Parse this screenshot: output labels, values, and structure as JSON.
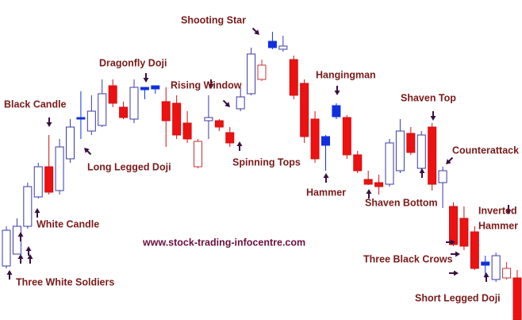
{
  "chart_data": {
    "type": "candlestick",
    "ylim": [
      0,
      403
    ],
    "styles": {
      "up": {
        "fill": "#ffffff",
        "stroke": "#3a3aa8"
      },
      "down": {
        "fill": "#ee1111",
        "stroke": "#cc1111"
      },
      "blue": {
        "fill": "#1030e0",
        "stroke": "#1030e0"
      },
      "hollow-red": {
        "fill": "#ffffff",
        "stroke": "#cc3333"
      }
    },
    "style": [
      "up",
      "up",
      "up",
      "up",
      "down",
      "up",
      "up",
      "blue",
      "up",
      "up",
      "down",
      "down",
      "up",
      "blue",
      "blue",
      "down",
      "down",
      "down",
      "hollow-red",
      "up",
      "down",
      "down",
      "up",
      "up",
      "hollow-red",
      "blue",
      "up",
      "down",
      "down",
      "down",
      "blue",
      "blue",
      "down",
      "down",
      "down",
      "down",
      "up",
      "up",
      "down",
      "up",
      "down",
      "up",
      "down",
      "down",
      "down",
      "blue",
      "up",
      "hollow-red",
      "down"
    ],
    "open": [
      68,
      83,
      118,
      155,
      193,
      163,
      203,
      255,
      238,
      245,
      295,
      268,
      253,
      293,
      291,
      275,
      273,
      248,
      193,
      251,
      251,
      236,
      266,
      285,
      303,
      351,
      341,
      328,
      298,
      253,
      231,
      270,
      255,
      208,
      177,
      173,
      171,
      188,
      235,
      191,
      243,
      173,
      143,
      128,
      111,
      73,
      51,
      53,
      53
    ],
    "close": [
      113,
      118,
      168,
      193,
      161,
      218,
      243,
      255,
      263,
      285,
      273,
      255,
      293,
      290,
      295,
      251,
      233,
      228,
      225,
      255,
      243,
      223,
      281,
      335,
      321,
      343,
      345,
      283,
      231,
      203,
      220,
      256,
      208,
      188,
      171,
      168,
      223,
      238,
      211,
      233,
      171,
      188,
      95,
      93,
      65,
      69,
      81,
      65,
      0
    ],
    "high": [
      118,
      128,
      173,
      198,
      233,
      228,
      253,
      288,
      283,
      303,
      303,
      275,
      303,
      293,
      295,
      293,
      283,
      263,
      228,
      283,
      253,
      243,
      293,
      343,
      328,
      363,
      358,
      333,
      303,
      263,
      233,
      273,
      258,
      213,
      188,
      183,
      228,
      253,
      243,
      238,
      248,
      193,
      148,
      143,
      118,
      81,
      85,
      73,
      63
    ],
    "low": [
      65,
      83,
      115,
      153,
      158,
      158,
      198,
      228,
      233,
      243,
      268,
      253,
      248,
      278,
      285,
      218,
      228,
      223,
      191,
      228,
      238,
      218,
      263,
      283,
      301,
      341,
      338,
      278,
      223,
      198,
      188,
      253,
      203,
      185,
      170,
      158,
      168,
      185,
      208,
      188,
      163,
      141,
      93,
      88,
      63,
      53,
      48,
      51,
      0
    ],
    "annotations": [
      "Shooting Star",
      "Dragonfly Doji",
      "Black Candle",
      "Rising Window",
      "Hangingman",
      "Shaven Top",
      "Long Legged Doji",
      "Spinning Tops",
      "Hammer",
      "Shaven Bottom",
      "Counterattack",
      "White Candle",
      "Inverted",
      "Hammer",
      "www.stock-trading-infocentre.com",
      "Three Black Crows",
      "Three White Soldiers",
      "Short Legged Doji"
    ]
  }
}
